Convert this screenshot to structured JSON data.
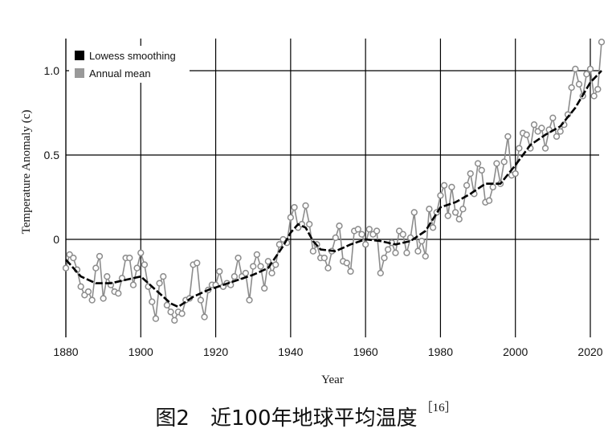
{
  "chart_data": {
    "type": "line",
    "title": "",
    "xlabel": "Year",
    "ylabel": "Temperature Anomaly (c)",
    "xlim": [
      1880,
      2024
    ],
    "ylim": [
      -0.58,
      1.2
    ],
    "x_ticks": [
      1880,
      1900,
      1920,
      1940,
      1960,
      1980,
      2000,
      2020
    ],
    "y_ticks": [
      {
        "value": 0,
        "label": "0"
      },
      {
        "value": 0.5,
        "label": "0.5"
      },
      {
        "value": 1.0,
        "label": "1.0"
      }
    ],
    "grid": true,
    "legend": {
      "position": "top-left",
      "entries": [
        {
          "label": "Lowess smoothing",
          "color": "#000000"
        },
        {
          "label": "Annual mean",
          "color": "#999999"
        }
      ]
    },
    "series": [
      {
        "name": "Annual mean",
        "color": "#8c8c8c",
        "x": [
          1880,
          1881,
          1882,
          1883,
          1884,
          1885,
          1886,
          1887,
          1888,
          1889,
          1890,
          1891,
          1892,
          1893,
          1894,
          1895,
          1896,
          1897,
          1898,
          1899,
          1900,
          1901,
          1902,
          1903,
          1904,
          1905,
          1906,
          1907,
          1908,
          1909,
          1910,
          1911,
          1912,
          1913,
          1914,
          1915,
          1916,
          1917,
          1918,
          1919,
          1920,
          1921,
          1922,
          1923,
          1924,
          1925,
          1926,
          1927,
          1928,
          1929,
          1930,
          1931,
          1932,
          1933,
          1934,
          1935,
          1936,
          1937,
          1938,
          1939,
          1940,
          1941,
          1942,
          1943,
          1944,
          1945,
          1946,
          1947,
          1948,
          1949,
          1950,
          1951,
          1952,
          1953,
          1954,
          1955,
          1956,
          1957,
          1958,
          1959,
          1960,
          1961,
          1962,
          1963,
          1964,
          1965,
          1966,
          1967,
          1968,
          1969,
          1970,
          1971,
          1972,
          1973,
          1974,
          1975,
          1976,
          1977,
          1978,
          1979,
          1980,
          1981,
          1982,
          1983,
          1984,
          1985,
          1986,
          1987,
          1988,
          1989,
          1990,
          1991,
          1992,
          1993,
          1994,
          1995,
          1996,
          1997,
          1998,
          1999,
          2000,
          2001,
          2002,
          2003,
          2004,
          2005,
          2006,
          2007,
          2008,
          2009,
          2010,
          2011,
          2012,
          2013,
          2014,
          2015,
          2016,
          2017,
          2018,
          2019,
          2020,
          2021,
          2022,
          2023
        ],
        "y": [
          -0.17,
          -0.09,
          -0.11,
          -0.18,
          -0.28,
          -0.33,
          -0.31,
          -0.36,
          -0.17,
          -0.1,
          -0.35,
          -0.22,
          -0.27,
          -0.31,
          -0.32,
          -0.23,
          -0.11,
          -0.11,
          -0.27,
          -0.17,
          -0.08,
          -0.15,
          -0.28,
          -0.37,
          -0.47,
          -0.26,
          -0.22,
          -0.39,
          -0.43,
          -0.48,
          -0.43,
          -0.44,
          -0.36,
          -0.35,
          -0.15,
          -0.14,
          -0.36,
          -0.46,
          -0.3,
          -0.27,
          -0.27,
          -0.19,
          -0.28,
          -0.26,
          -0.27,
          -0.22,
          -0.11,
          -0.22,
          -0.2,
          -0.36,
          -0.16,
          -0.09,
          -0.16,
          -0.29,
          -0.13,
          -0.2,
          -0.15,
          -0.03,
          0.0,
          -0.02,
          0.13,
          0.19,
          0.07,
          0.09,
          0.2,
          0.09,
          -0.07,
          -0.03,
          -0.11,
          -0.11,
          -0.17,
          -0.07,
          0.01,
          0.08,
          -0.13,
          -0.14,
          -0.19,
          0.05,
          0.06,
          0.03,
          -0.03,
          0.06,
          0.03,
          0.05,
          -0.2,
          -0.11,
          -0.06,
          -0.02,
          -0.08,
          0.05,
          0.03,
          -0.08,
          0.01,
          0.16,
          -0.07,
          -0.01,
          -0.1,
          0.18,
          0.07,
          0.16,
          0.26,
          0.32,
          0.14,
          0.31,
          0.16,
          0.12,
          0.18,
          0.32,
          0.39,
          0.27,
          0.45,
          0.41,
          0.22,
          0.23,
          0.31,
          0.45,
          0.33,
          0.46,
          0.61,
          0.38,
          0.39,
          0.54,
          0.63,
          0.62,
          0.54,
          0.68,
          0.64,
          0.66,
          0.54,
          0.65,
          0.72,
          0.61,
          0.64,
          0.68,
          0.74,
          0.9,
          1.01,
          0.92,
          0.85,
          0.98,
          1.01,
          0.85,
          0.89,
          1.17
        ]
      },
      {
        "name": "Lowess smoothing",
        "color": "#000000",
        "x": [
          1880,
          1884,
          1888,
          1892,
          1896,
          1900,
          1904,
          1908,
          1910,
          1914,
          1918,
          1922,
          1926,
          1930,
          1934,
          1938,
          1940,
          1942,
          1944,
          1946,
          1948,
          1952,
          1956,
          1960,
          1964,
          1968,
          1972,
          1976,
          1980,
          1984,
          1988,
          1992,
          1996,
          2000,
          2004,
          2008,
          2012,
          2016,
          2020,
          2023
        ],
        "y": [
          -0.12,
          -0.22,
          -0.26,
          -0.26,
          -0.24,
          -0.22,
          -0.3,
          -0.38,
          -0.4,
          -0.34,
          -0.3,
          -0.27,
          -0.24,
          -0.21,
          -0.17,
          -0.04,
          0.04,
          0.09,
          0.07,
          -0.01,
          -0.06,
          -0.07,
          -0.03,
          0.0,
          -0.01,
          -0.03,
          -0.01,
          0.05,
          0.19,
          0.22,
          0.27,
          0.33,
          0.33,
          0.44,
          0.56,
          0.62,
          0.67,
          0.78,
          0.93,
          1.0
        ]
      }
    ]
  },
  "caption": {
    "text": "图2　近100年地球平均温度",
    "citation": "［16］"
  }
}
